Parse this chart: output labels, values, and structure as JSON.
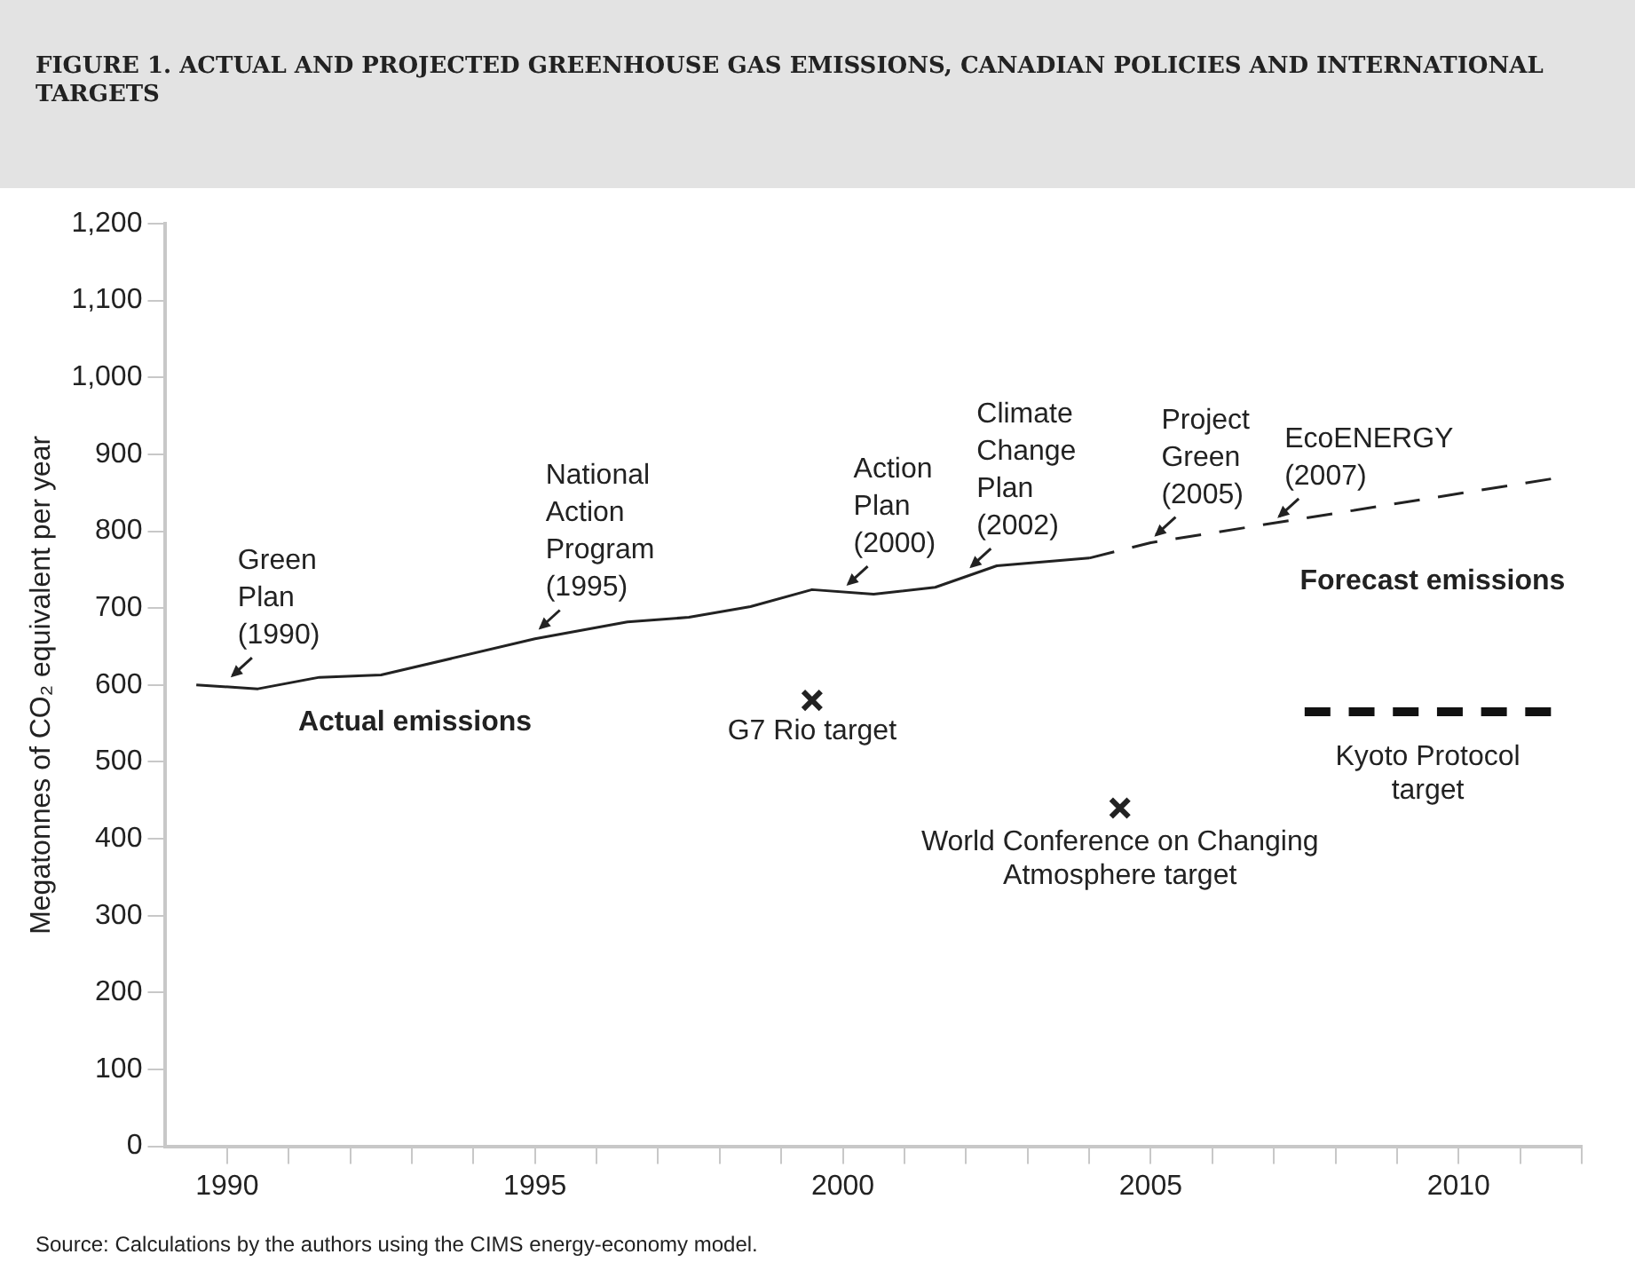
{
  "chart_data": {
    "type": "line",
    "title": "FIGURE 1. ACTUAL AND PROJECTED GREENHOUSE GAS EMISSIONS, CANADIAN POLICIES AND INTERNATIONAL TARGETS",
    "ylabel": "Megatonnes of CO₂ equivalent per year",
    "xlim": [
      1989,
      2012
    ],
    "xticks": [
      1990,
      {
        "value": 1991,
        "label": null
      },
      {
        "value": 1992,
        "label": null
      },
      {
        "value": 1993,
        "label": null
      },
      {
        "value": 1994,
        "label": null
      },
      1995,
      {
        "value": 1996,
        "label": null
      },
      {
        "value": 1997,
        "label": null
      },
      {
        "value": 1998,
        "label": null
      },
      {
        "value": 1999,
        "label": null
      },
      2000,
      {
        "value": 2001,
        "label": null
      },
      {
        "value": 2002,
        "label": null
      },
      {
        "value": 2003,
        "label": null
      },
      {
        "value": 2004,
        "label": null
      },
      2005,
      {
        "value": 2006,
        "label": null
      },
      {
        "value": 2007,
        "label": null
      },
      {
        "value": 2008,
        "label": null
      },
      {
        "value": 2009,
        "label": null
      },
      2010,
      {
        "value": 2011,
        "label": null
      },
      {
        "value": 2012,
        "label": null
      }
    ],
    "ylim": [
      0,
      1200
    ],
    "yticks": [
      0,
      100,
      200,
      300,
      400,
      500,
      600,
      700,
      800,
      900,
      {
        "value": 1000,
        "label": "1,000"
      },
      {
        "value": 1100,
        "label": "1,100"
      },
      {
        "value": 1200,
        "label": "1,200"
      }
    ],
    "grid": false,
    "marker": "none",
    "series": [
      {
        "name": "Actual emissions",
        "type": "line",
        "line_style": "solid",
        "color": "#222222",
        "x": [
          1989.5,
          1990.5,
          1991.5,
          1992.5,
          1995,
          1996.5,
          1997.5,
          1998.5,
          1999.5,
          2000.5,
          2001.5,
          2002.5,
          2004
        ],
        "values": [
          600,
          595,
          610,
          613,
          660,
          682,
          688,
          702,
          724,
          718,
          727,
          755,
          765
        ]
      },
      {
        "name": "Forecast emissions",
        "type": "line",
        "line_style": "dashed",
        "color": "#222222",
        "x": [
          2004,
          2005,
          2011.5
        ],
        "values": [
          765,
          785,
          868
        ]
      },
      {
        "name": "G7 Rio target",
        "type": "scatter",
        "marker": "cross",
        "color": "#222222",
        "x": [
          1999.5
        ],
        "values": [
          580
        ]
      },
      {
        "name": "World Conference on Changing Atmosphere target",
        "type": "scatter",
        "marker": "cross",
        "color": "#222222",
        "x": [
          2004.5
        ],
        "values": [
          440
        ]
      },
      {
        "name": "Kyoto Protocol target",
        "type": "line",
        "line_style": "dashed",
        "color": "#111111",
        "x": [
          2007.5,
          2011.5
        ],
        "values": [
          565,
          565
        ]
      }
    ],
    "annotations": [
      {
        "text": "Green Plan (1990)",
        "x": 1990,
        "y": 603
      },
      {
        "text": "National Action Program (1995)",
        "x": 1995,
        "y": 665
      },
      {
        "text": "Action Plan (2000)",
        "x": 2000,
        "y": 722
      },
      {
        "text": "Climate Change Plan (2002)",
        "x": 2002,
        "y": 745
      },
      {
        "text": "Project Green (2005)",
        "x": 2005,
        "y": 786
      },
      {
        "text": "EcoENERGY (2007)",
        "x": 2007,
        "y": 810
      },
      "Source: Calculations by the authors using the CIMS energy-economy model."
    ]
  }
}
